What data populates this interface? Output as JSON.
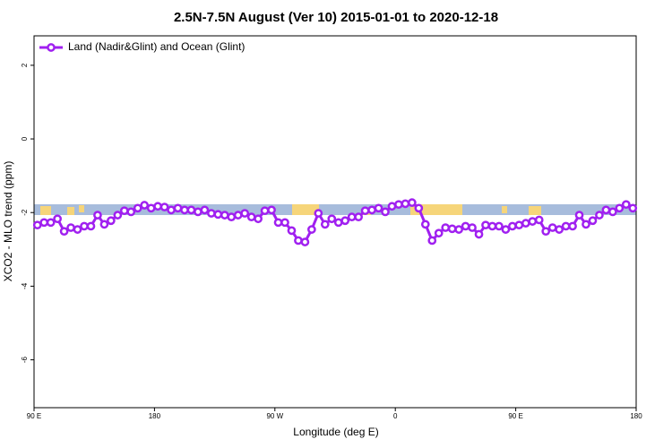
{
  "chart_data": {
    "type": "line",
    "title": "2.5N-7.5N August (Ver 10)   2015-01-01 to 2020-12-18",
    "x_label": "Longitude (deg E)",
    "y_label": "XCO2 - MLO trend (ppm)",
    "xlim": [
      90,
      540
    ],
    "xticks": [
      {
        "value": 90,
        "label": "90 E"
      },
      180,
      {
        "value": 270,
        "label": "90 W"
      },
      {
        "value": 360,
        "label": "0"
      },
      {
        "value": 450,
        "label": "90 E"
      },
      {
        "value": 540,
        "label": "180"
      }
    ],
    "ylim": [
      -7.3,
      2.8
    ],
    "yticks": [
      -6,
      -4,
      -2,
      0,
      2
    ],
    "legend": "top-left",
    "x": [
      92.5,
      97.5,
      102.5,
      107.5,
      112.5,
      117.5,
      122.5,
      127.5,
      132.5,
      137.5,
      142.5,
      147.5,
      152.5,
      157.5,
      162.5,
      167.5,
      172.5,
      177.5,
      182.5,
      187.5,
      192.5,
      197.5,
      202.5,
      207.5,
      212.5,
      217.5,
      222.5,
      227.5,
      232.5,
      237.5,
      242.5,
      247.5,
      252.5,
      257.5,
      262.5,
      267.5,
      272.5,
      277.5,
      282.5,
      287.5,
      292.5,
      297.5,
      302.5,
      307.5,
      312.5,
      317.5,
      322.5,
      327.5,
      332.5,
      337.5,
      342.5,
      347.5,
      352.5,
      357.5,
      362.5,
      367.5,
      372.5,
      377.5,
      382.5,
      387.5,
      392.5,
      397.5,
      402.5,
      407.5,
      412.5,
      417.5,
      422.5,
      427.5,
      432.5,
      437.5,
      442.5,
      447.5,
      452.5,
      457.5,
      462.5,
      467.5,
      472.5,
      477.5,
      482.5,
      487.5,
      492.5,
      497.5,
      502.5,
      507.5,
      512.5,
      517.5,
      522.5,
      527.5,
      532.5,
      537.5
    ],
    "series": [
      {
        "name": "Land (Nadir&Glint) and Ocean (Glint)",
        "color": "#a020f0",
        "values": [
          -2.34,
          -2.27,
          -2.27,
          -2.17,
          -2.51,
          -2.41,
          -2.46,
          -2.37,
          -2.37,
          -2.07,
          -2.32,
          -2.22,
          -2.07,
          -1.95,
          -1.98,
          -1.88,
          -1.8,
          -1.88,
          -1.83,
          -1.85,
          -1.93,
          -1.88,
          -1.93,
          -1.93,
          -1.98,
          -1.93,
          -2.02,
          -2.05,
          -2.07,
          -2.12,
          -2.07,
          -2.02,
          -2.12,
          -2.17,
          -1.95,
          -1.93,
          -2.27,
          -2.27,
          -2.49,
          -2.76,
          -2.8,
          -2.46,
          -2.02,
          -2.32,
          -2.17,
          -2.27,
          -2.22,
          -2.12,
          -2.12,
          -1.95,
          -1.93,
          -1.88,
          -1.98,
          -1.83,
          -1.78,
          -1.76,
          -1.73,
          -1.88,
          -2.32,
          -2.76,
          -2.56,
          -2.41,
          -2.44,
          -2.46,
          -2.37,
          -2.41,
          -2.59,
          -2.34,
          -2.37,
          -2.37,
          -2.46,
          -2.37,
          -2.34,
          -2.29,
          -2.24,
          -2.2,
          -2.51,
          -2.41,
          -2.46,
          -2.37,
          -2.37,
          -2.07,
          -2.32,
          -2.22,
          -2.07,
          -1.93,
          -1.98,
          -1.88,
          -1.78,
          -1.88
        ]
      }
    ]
  }
}
